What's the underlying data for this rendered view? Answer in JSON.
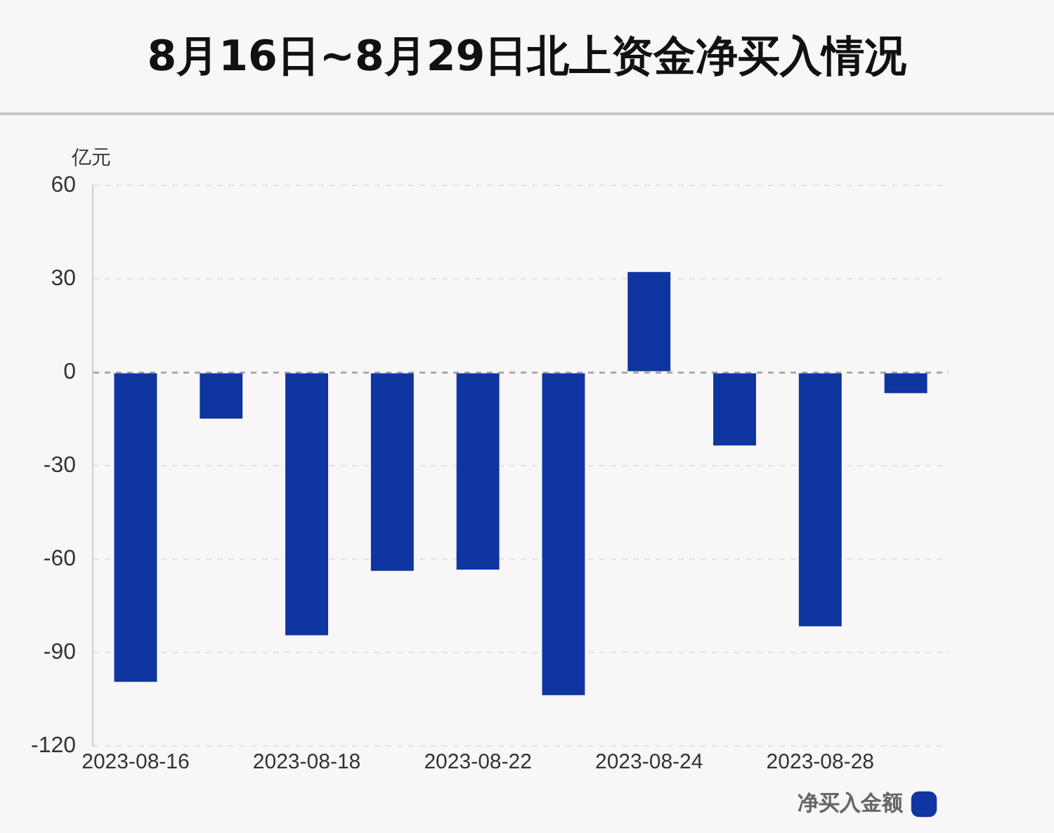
{
  "chart_data": {
    "type": "bar",
    "title": "8月16日~8月29日北上资金净买入情况",
    "ylabel": "亿元",
    "categories": [
      "2023-08-16",
      null,
      "2023-08-18",
      null,
      "2023-08-22",
      null,
      "2023-08-24",
      null,
      "2023-08-28",
      null
    ],
    "series": [
      {
        "name": "净买入金额",
        "color": "#0e35a0",
        "values": [
          -99.4,
          -14.9,
          -84.5,
          -63.8,
          -63.4,
          -103.7,
          32.2,
          -23.5,
          -81.6,
          -6.7
        ]
      }
    ],
    "ylim": [
      -120,
      60
    ],
    "yticks": [
      -120,
      -90,
      -60,
      -30,
      0,
      30,
      60
    ],
    "grid": "y",
    "legend": "bottom right",
    "ref_lines": [
      {
        "axis": "y",
        "value": 0,
        "color": "#aaaaaa"
      }
    ]
  }
}
